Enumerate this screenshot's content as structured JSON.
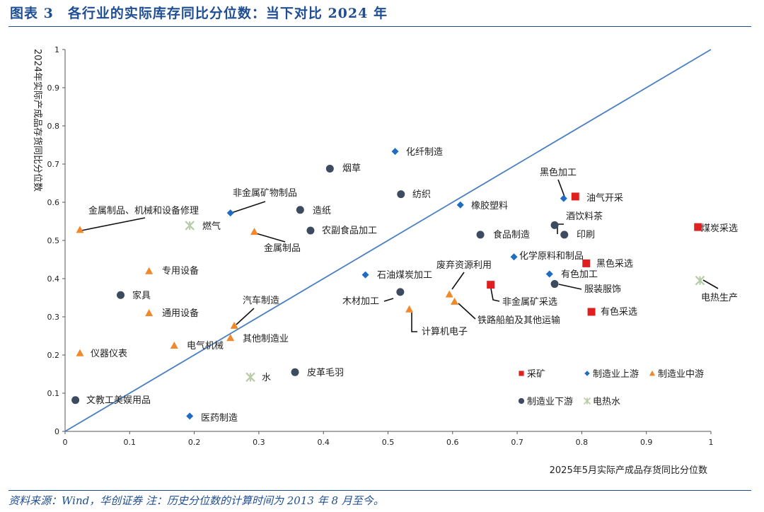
{
  "header": {
    "title": "图表 3　各行业的实际库存同比分位数：当下对比 2024 年"
  },
  "footer": {
    "note": "资料来源：Wind，华创证券 注：历史分位数的计算时间为 2013 年 8 月至今。"
  },
  "chart_data": {
    "type": "scatter",
    "xlabel": "2025年5月实际产成品存货同比分位数",
    "ylabel": "2024年实际产成品存货同比分位数",
    "xlim": [
      0,
      1
    ],
    "ylim": [
      0,
      1
    ],
    "x_ticks": [
      "0",
      "0.1",
      "0.2",
      "0.3",
      "0.4",
      "0.5",
      "0.6",
      "0.7",
      "0.8",
      "0.9",
      "1"
    ],
    "y_ticks": [
      "0",
      "0.1",
      "0.2",
      "0.3",
      "0.4",
      "0.5",
      "0.6",
      "0.7",
      "0.8",
      "0.9",
      "1"
    ],
    "grid": false,
    "reference_line": {
      "from": [
        0,
        0
      ],
      "to": [
        1,
        1
      ],
      "color": "#4a7fc1"
    },
    "legend_position": "bottom-right",
    "series": [
      {
        "name": "采矿",
        "marker": "square",
        "color": "#e02020",
        "points": [
          {
            "label": "油气开采",
            "x": 0.79,
            "y": 0.615
          },
          {
            "label": "煤炭采选",
            "x": 0.98,
            "y": 0.535
          },
          {
            "label": "黑色采选",
            "x": 0.807,
            "y": 0.44
          },
          {
            "label": "非金属矿采选",
            "x": 0.659,
            "y": 0.384
          },
          {
            "label": "有色采选",
            "x": 0.815,
            "y": 0.313
          }
        ]
      },
      {
        "name": "制造业上游",
        "marker": "diamond",
        "color": "#1f6cc0",
        "points": [
          {
            "label": "化纤制造",
            "x": 0.511,
            "y": 0.733
          },
          {
            "label": "黑色加工",
            "x": 0.772,
            "y": 0.61
          },
          {
            "label": "橡胶塑料",
            "x": 0.612,
            "y": 0.593
          },
          {
            "label": "非金属矿物制品",
            "x": 0.256,
            "y": 0.572
          },
          {
            "label": "化学原料和制品",
            "x": 0.695,
            "y": 0.457
          },
          {
            "label": "有色加工",
            "x": 0.75,
            "y": 0.412
          },
          {
            "label": "石油煤炭加工",
            "x": 0.465,
            "y": 0.41
          },
          {
            "label": "医药制造",
            "x": 0.193,
            "y": 0.04
          }
        ]
      },
      {
        "name": "制造业中游",
        "marker": "triangle",
        "color": "#f0882c",
        "points": [
          {
            "label": "金属制品、机械和设备修理",
            "x": 0.023,
            "y": 0.528
          },
          {
            "label": "金属制品",
            "x": 0.293,
            "y": 0.523
          },
          {
            "label": "专用设备",
            "x": 0.13,
            "y": 0.42
          },
          {
            "label": "通用设备",
            "x": 0.13,
            "y": 0.31
          },
          {
            "label": "废弃资源利用",
            "x": 0.595,
            "y": 0.359
          },
          {
            "label": "铁路船舶及其他运输",
            "x": 0.603,
            "y": 0.34
          },
          {
            "label": "计算机电子",
            "x": 0.533,
            "y": 0.32
          },
          {
            "label": "汽车制造",
            "x": 0.262,
            "y": 0.277
          },
          {
            "label": "其他制造业",
            "x": 0.256,
            "y": 0.245
          },
          {
            "label": "电气机械",
            "x": 0.169,
            "y": 0.225
          },
          {
            "label": "仪器仪表",
            "x": 0.023,
            "y": 0.205
          }
        ]
      },
      {
        "name": "制造业下游",
        "marker": "circle",
        "color": "#3c4b60",
        "points": [
          {
            "label": "烟草",
            "x": 0.41,
            "y": 0.688
          },
          {
            "label": "纺织",
            "x": 0.52,
            "y": 0.621
          },
          {
            "label": "造纸",
            "x": 0.364,
            "y": 0.58
          },
          {
            "label": "酒饮料茶",
            "x": 0.758,
            "y": 0.54
          },
          {
            "label": "农副食品加工",
            "x": 0.38,
            "y": 0.526
          },
          {
            "label": "食品制造",
            "x": 0.643,
            "y": 0.515
          },
          {
            "label": "印刷",
            "x": 0.773,
            "y": 0.515
          },
          {
            "label": "服装服饰",
            "x": 0.758,
            "y": 0.386
          },
          {
            "label": "木材加工",
            "x": 0.519,
            "y": 0.365
          },
          {
            "label": "家具",
            "x": 0.086,
            "y": 0.357
          },
          {
            "label": "皮革毛羽",
            "x": 0.356,
            "y": 0.155
          },
          {
            "label": "文教工美娱用品",
            "x": 0.016,
            "y": 0.082
          }
        ]
      },
      {
        "name": "电热水",
        "marker": "asterisk",
        "color": "#b8cca8",
        "points": [
          {
            "label": "燃气",
            "x": 0.193,
            "y": 0.539
          },
          {
            "label": "电热生产",
            "x": 0.983,
            "y": 0.395
          },
          {
            "label": "水",
            "x": 0.287,
            "y": 0.142
          }
        ]
      }
    ]
  }
}
